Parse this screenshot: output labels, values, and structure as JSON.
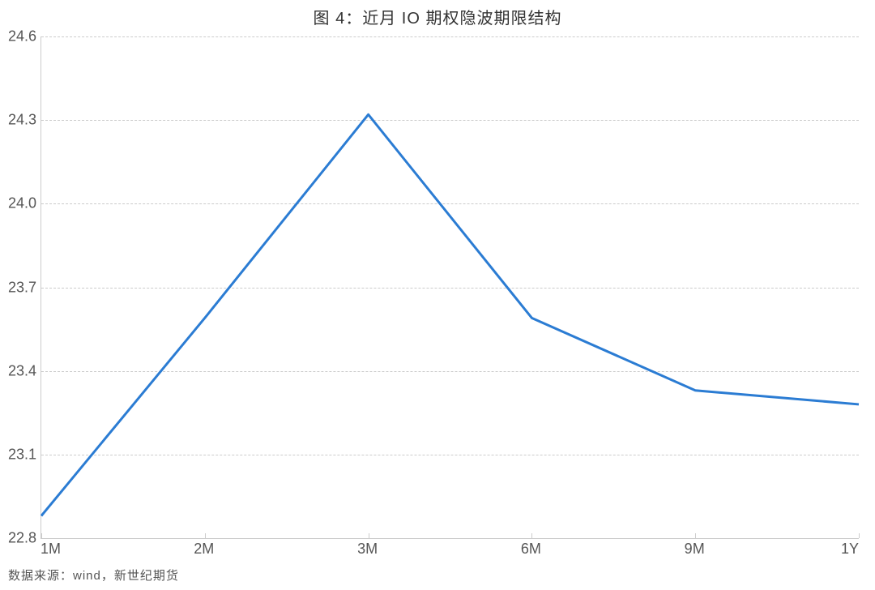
{
  "title": "图 4：近月 IO 期权隐波期限结构",
  "source_label": "数据来源：wind，新世纪期货",
  "chart": {
    "type": "line",
    "x_labels": [
      "1M",
      "2M",
      "3M",
      "6M",
      "9M",
      "1Y"
    ],
    "y_values": [
      22.88,
      23.59,
      24.32,
      23.59,
      23.33,
      23.28
    ],
    "y_ticks": [
      22.8,
      23.1,
      23.4,
      23.7,
      24.0,
      24.3,
      24.6
    ],
    "ylim_min": 22.8,
    "ylim_max": 24.6,
    "line_color": "#2b7cd3",
    "line_width": 3,
    "grid_color": "#cccccc",
    "axis_color": "#cccccc",
    "background_color": "#ffffff",
    "y_label_fontsize": 18,
    "x_label_fontsize": 18,
    "title_fontsize": 20,
    "title_color": "#333333",
    "label_color": "#555555",
    "source_color": "#555555",
    "source_fontsize": 15
  }
}
